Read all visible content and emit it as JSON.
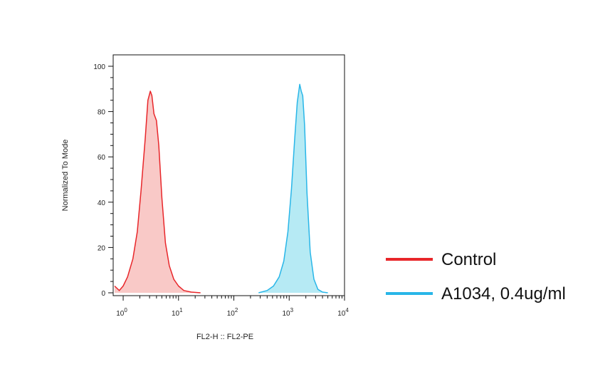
{
  "chart_data": {
    "type": "area",
    "xlabel": "FL2-H :: FL2-PE",
    "ylabel": "Normalized To Mode",
    "xscale": "log",
    "xlim": [
      0.7,
      10000
    ],
    "ylim": [
      0,
      100
    ],
    "x_ticks": [
      {
        "base": "10",
        "exp": "0",
        "value": 1
      },
      {
        "base": "10",
        "exp": "1",
        "value": 10
      },
      {
        "base": "10",
        "exp": "2",
        "value": 100
      },
      {
        "base": "10",
        "exp": "3",
        "value": 1000
      },
      {
        "base": "10",
        "exp": "4",
        "value": 10000
      }
    ],
    "y_ticks": [
      "0",
      "20",
      "40",
      "60",
      "80",
      "100"
    ],
    "grid": false,
    "legend_position": "right",
    "series": [
      {
        "name": "Control",
        "color": "#e8262a",
        "fill": "#f9c9c7",
        "points": [
          [
            0.7,
            3
          ],
          [
            0.85,
            1
          ],
          [
            1.0,
            3
          ],
          [
            1.2,
            7
          ],
          [
            1.5,
            15
          ],
          [
            1.8,
            27
          ],
          [
            2.1,
            45
          ],
          [
            2.5,
            68
          ],
          [
            2.8,
            85
          ],
          [
            3.1,
            89
          ],
          [
            3.3,
            87
          ],
          [
            3.6,
            79
          ],
          [
            4.0,
            76
          ],
          [
            4.4,
            65
          ],
          [
            5.0,
            42
          ],
          [
            5.8,
            22
          ],
          [
            6.8,
            12
          ],
          [
            8.2,
            6
          ],
          [
            10,
            3
          ],
          [
            12.5,
            1
          ],
          [
            17,
            0.3
          ],
          [
            25,
            0
          ]
        ]
      },
      {
        "name": "A1034, 0.4ug/ml",
        "color": "#29b6e8",
        "fill": "#b6eaf4",
        "points": [
          [
            280,
            0
          ],
          [
            400,
            1
          ],
          [
            520,
            3
          ],
          [
            660,
            7
          ],
          [
            800,
            14
          ],
          [
            950,
            27
          ],
          [
            1100,
            46
          ],
          [
            1250,
            67
          ],
          [
            1400,
            84
          ],
          [
            1550,
            92
          ],
          [
            1650,
            89
          ],
          [
            1760,
            87
          ],
          [
            1900,
            74
          ],
          [
            2100,
            44
          ],
          [
            2400,
            18
          ],
          [
            2800,
            6
          ],
          [
            3300,
            1.5
          ],
          [
            4000,
            0.3
          ],
          [
            5000,
            0
          ]
        ]
      }
    ]
  }
}
